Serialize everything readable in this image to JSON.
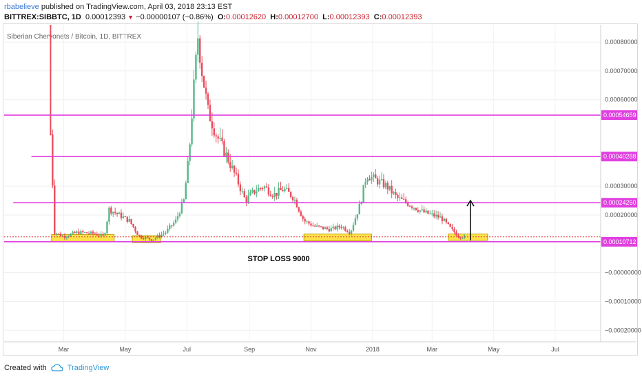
{
  "header": {
    "author": "rbabelieve",
    "published": "published on TradingView.com, April 03, 2018 23:13 EST"
  },
  "ohlc": {
    "symbol": "BITTREX:SIBBTC, 1D",
    "last": "0.00012393",
    "change": "−0.00000107 (−0.86%)",
    "o_label": "O:",
    "o": "0.00012620",
    "h_label": "H:",
    "h": "0.00012700",
    "l_label": "L:",
    "l": "0.00012393",
    "c_label": "C:",
    "c": "0.00012393"
  },
  "footer": {
    "created_with": "Created with",
    "brand": "TradingView"
  },
  "colors": {
    "up": "#53b987",
    "down": "#eb4d5c",
    "level_line": "#e040e0",
    "zone_fill": "#ffe24a",
    "zone_stroke": "#b8a000",
    "axis_text": "#555555"
  },
  "chart_data": {
    "type": "candlestick",
    "title": "Siberian Chervonets / Bitcoin, 1D, BITTREX",
    "y_ticks": [
      "0.00080000",
      "0.00070000",
      "0.00060000",
      "0.00030000",
      "0.00020000",
      "−0.00000000",
      "−0.00010000",
      "−0.00020000"
    ],
    "y_tick_values": [
      0.0008,
      0.0007,
      0.0006,
      0.0003,
      0.0002,
      0.0,
      -0.0001,
      -0.0002
    ],
    "ylim": [
      -0.00024,
      0.00086
    ],
    "x_ticks": [
      "Mar",
      "May",
      "Jul",
      "Sep",
      "Nov",
      "2018",
      "Mar",
      "May",
      "Jul"
    ],
    "x_tick_dates": [
      "2017-03-01",
      "2017-05-01",
      "2017-07-01",
      "2017-09-01",
      "2017-11-01",
      "2018-01-01",
      "2018-03-01",
      "2018-05-01",
      "2018-07-01"
    ],
    "levels": [
      {
        "price": 0.00054659,
        "label": "0.00054659",
        "from": "2017-01-01"
      },
      {
        "price": 0.00040288,
        "label": "0.00040288",
        "from": "2017-01-28"
      },
      {
        "price": 0.0002425,
        "label": "0.00024250",
        "from": "2017-01-10"
      },
      {
        "price": 0.00010712,
        "label": "0.00010712",
        "from": "2017-01-01"
      }
    ],
    "zones": [
      {
        "start": "2017-02-17",
        "end": "2017-04-20",
        "top": 0.000132,
        "bottom": 0.000108
      },
      {
        "start": "2017-05-08",
        "end": "2017-06-05",
        "top": 0.000128,
        "bottom": 0.000104
      },
      {
        "start": "2017-10-25",
        "end": "2017-12-31",
        "top": 0.000134,
        "bottom": 0.00011
      },
      {
        "start": "2018-03-17",
        "end": "2018-04-25",
        "top": 0.000134,
        "bottom": 0.000112
      }
    ],
    "arrow": {
      "date": "2018-04-08",
      "from_price": 0.000112,
      "to_price": 0.00025
    },
    "annotation": "STOP LOSS 9000",
    "annotation_at": {
      "date": "2017-09-30",
      "price": 4e-05
    },
    "current_price_line": 0.00012393,
    "series_close": [
      [
        "2017-02-16",
        0.00048
      ],
      [
        "2017-02-20",
        0.00014
      ],
      [
        "2017-03-01",
        0.000125
      ],
      [
        "2017-03-15",
        0.00014
      ],
      [
        "2017-04-01",
        0.000135
      ],
      [
        "2017-04-10",
        0.000125
      ],
      [
        "2017-04-15",
        0.00022
      ],
      [
        "2017-04-25",
        0.0002
      ],
      [
        "2017-05-05",
        0.00018
      ],
      [
        "2017-05-15",
        0.000125
      ],
      [
        "2017-05-28",
        0.000115
      ],
      [
        "2017-06-10",
        0.00014
      ],
      [
        "2017-06-20",
        0.00018
      ],
      [
        "2017-06-28",
        0.00025
      ],
      [
        "2017-07-03",
        0.0004
      ],
      [
        "2017-07-07",
        0.0006
      ],
      [
        "2017-07-12",
        0.00082
      ],
      [
        "2017-07-16",
        0.0007
      ],
      [
        "2017-07-22",
        0.00056
      ],
      [
        "2017-07-30",
        0.00048
      ],
      [
        "2017-08-10",
        0.0004
      ],
      [
        "2017-08-20",
        0.00032
      ],
      [
        "2017-08-28",
        0.00025
      ],
      [
        "2017-09-05",
        0.00028
      ],
      [
        "2017-09-15",
        0.0003
      ],
      [
        "2017-09-25",
        0.00027
      ],
      [
        "2017-10-05",
        0.00029
      ],
      [
        "2017-10-15",
        0.00026
      ],
      [
        "2017-10-25",
        0.00018
      ],
      [
        "2017-11-05",
        0.00016
      ],
      [
        "2017-11-20",
        0.00015
      ],
      [
        "2017-12-01",
        0.00016
      ],
      [
        "2017-12-10",
        0.00014
      ],
      [
        "2017-12-20",
        0.00024
      ],
      [
        "2017-12-26",
        0.00034
      ],
      [
        "2018-01-05",
        0.00032
      ],
      [
        "2018-01-15",
        0.0003
      ],
      [
        "2018-01-25",
        0.00026
      ],
      [
        "2018-02-05",
        0.00024
      ],
      [
        "2018-02-20",
        0.00021
      ],
      [
        "2018-03-01",
        0.0002
      ],
      [
        "2018-03-10",
        0.00019
      ],
      [
        "2018-03-20",
        0.00015
      ],
      [
        "2018-03-28",
        0.000125
      ],
      [
        "2018-04-03",
        0.00012393
      ]
    ]
  }
}
